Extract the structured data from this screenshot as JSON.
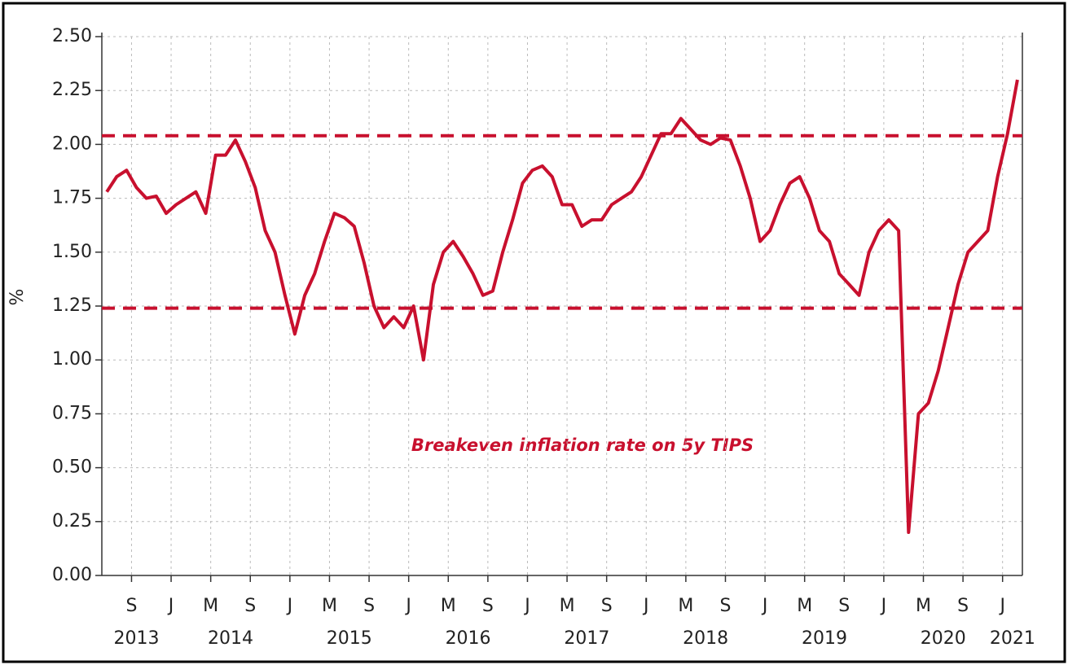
{
  "chart_data": {
    "type": "line",
    "ylabel": "%",
    "annotation": "Breakeven inflation rate on 5y TIPS",
    "x": [
      "2013-06",
      "2013-07",
      "2013-08",
      "2013-09",
      "2013-10",
      "2013-11",
      "2013-12",
      "2014-01",
      "2014-02",
      "2014-03",
      "2014-04",
      "2014-05",
      "2014-06",
      "2014-07",
      "2014-08",
      "2014-09",
      "2014-10",
      "2014-11",
      "2014-12",
      "2015-01",
      "2015-02",
      "2015-03",
      "2015-04",
      "2015-05",
      "2015-06",
      "2015-07",
      "2015-08",
      "2015-09",
      "2015-10",
      "2015-11",
      "2015-12",
      "2016-01",
      "2016-02",
      "2016-03",
      "2016-04",
      "2016-05",
      "2016-06",
      "2016-07",
      "2016-08",
      "2016-09",
      "2016-10",
      "2016-11",
      "2016-12",
      "2017-01",
      "2017-02",
      "2017-03",
      "2017-04",
      "2017-05",
      "2017-06",
      "2017-07",
      "2017-08",
      "2017-09",
      "2017-10",
      "2017-11",
      "2017-12",
      "2018-01",
      "2018-02",
      "2018-03",
      "2018-04",
      "2018-05",
      "2018-06",
      "2018-07",
      "2018-08",
      "2018-09",
      "2018-10",
      "2018-11",
      "2018-12",
      "2019-01",
      "2019-02",
      "2019-03",
      "2019-04",
      "2019-05",
      "2019-06",
      "2019-07",
      "2019-08",
      "2019-09",
      "2019-10",
      "2019-11",
      "2019-12",
      "2020-01",
      "2020-02",
      "2020-03",
      "2020-04",
      "2020-05",
      "2020-06",
      "2020-07",
      "2020-08",
      "2020-09",
      "2020-10",
      "2020-11",
      "2020-12",
      "2021-01",
      "2021-02"
    ],
    "series": [
      {
        "name": "Breakeven inflation rate on 5y TIPS",
        "color": "#c8102e",
        "values": [
          1.78,
          1.85,
          1.88,
          1.8,
          1.75,
          1.76,
          1.68,
          1.72,
          1.75,
          1.78,
          1.68,
          1.95,
          1.95,
          2.02,
          1.92,
          1.8,
          1.6,
          1.5,
          1.3,
          1.12,
          1.3,
          1.4,
          1.55,
          1.68,
          1.66,
          1.62,
          1.45,
          1.25,
          1.15,
          1.2,
          1.15,
          1.25,
          1.0,
          1.35,
          1.5,
          1.55,
          1.48,
          1.4,
          1.3,
          1.32,
          1.5,
          1.65,
          1.82,
          1.88,
          1.9,
          1.85,
          1.72,
          1.72,
          1.62,
          1.65,
          1.65,
          1.72,
          1.75,
          1.78,
          1.85,
          1.95,
          2.05,
          2.05,
          2.12,
          2.07,
          2.02,
          2.0,
          2.03,
          2.02,
          1.9,
          1.75,
          1.55,
          1.6,
          1.72,
          1.82,
          1.85,
          1.75,
          1.6,
          1.55,
          1.4,
          1.35,
          1.3,
          1.5,
          1.6,
          1.65,
          1.6,
          0.2,
          0.75,
          0.8,
          0.95,
          1.15,
          1.35,
          1.5,
          1.55,
          1.6,
          1.85,
          2.05,
          2.3
        ]
      }
    ],
    "reference_lines": [
      2.04,
      1.24
    ],
    "reference_color": "#c8102e",
    "xlim": [
      "2013-06",
      "2021-03"
    ],
    "xticks": [
      {
        "value": "2013-09",
        "label": "S"
      },
      {
        "value": "2014-01",
        "label": "J"
      },
      {
        "value": "2014-05",
        "label": "M"
      },
      {
        "value": "2014-09",
        "label": "S"
      },
      {
        "value": "2015-01",
        "label": "J"
      },
      {
        "value": "2015-05",
        "label": "M"
      },
      {
        "value": "2015-09",
        "label": "S"
      },
      {
        "value": "2016-01",
        "label": "J"
      },
      {
        "value": "2016-05",
        "label": "M"
      },
      {
        "value": "2016-09",
        "label": "S"
      },
      {
        "value": "2017-01",
        "label": "J"
      },
      {
        "value": "2017-05",
        "label": "M"
      },
      {
        "value": "2017-09",
        "label": "S"
      },
      {
        "value": "2018-01",
        "label": "J"
      },
      {
        "value": "2018-05",
        "label": "M"
      },
      {
        "value": "2018-09",
        "label": "S"
      },
      {
        "value": "2019-01",
        "label": "J"
      },
      {
        "value": "2019-05",
        "label": "M"
      },
      {
        "value": "2019-09",
        "label": "S"
      },
      {
        "value": "2020-01",
        "label": "J"
      },
      {
        "value": "2020-05",
        "label": "M"
      },
      {
        "value": "2020-09",
        "label": "S"
      },
      {
        "value": "2021-01",
        "label": "J"
      }
    ],
    "year_labels": [
      "2013",
      "2014",
      "2015",
      "2016",
      "2017",
      "2018",
      "2019",
      "2020",
      "2021"
    ],
    "ylim": [
      0,
      2.5
    ],
    "yticks": [
      {
        "value": 0,
        "label": "0.00"
      },
      {
        "value": 0.25,
        "label": "0.25"
      },
      {
        "value": 0.5,
        "label": "0.50"
      },
      {
        "value": 0.75,
        "label": "0.75"
      },
      {
        "value": 1,
        "label": "1.00"
      },
      {
        "value": 1.25,
        "label": "1.25"
      },
      {
        "value": 1.5,
        "label": "1.50"
      },
      {
        "value": 1.75,
        "label": "1.75"
      },
      {
        "value": 2,
        "label": "2.00"
      },
      {
        "value": 2.25,
        "label": "2.25"
      },
      {
        "value": 2.5,
        "label": "2.50"
      }
    ],
    "grid": true
  }
}
